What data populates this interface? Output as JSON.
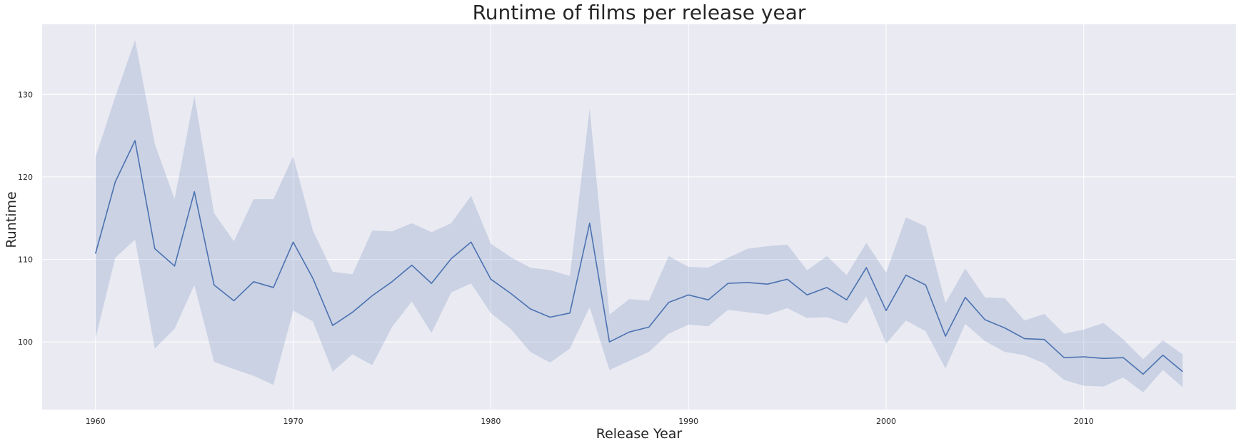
{
  "chart_data": {
    "type": "line",
    "title": "Runtime of films per release year",
    "xlabel": "Release Year",
    "ylabel": "Runtime",
    "xlim": [
      1957.3,
      2017.7
    ],
    "ylim": [
      91.8,
      138.5
    ],
    "xticks": [
      1960,
      1970,
      1980,
      1990,
      2000,
      2010
    ],
    "yticks": [
      100,
      110,
      120,
      130
    ],
    "grid": true,
    "legend": "none",
    "colors": {
      "line": "#4c72b0",
      "band": "#4c72b0",
      "background": "#eaeaf2",
      "grid": "#ffffff"
    },
    "series": [
      {
        "x": [
          1960,
          1961,
          1962,
          1963,
          1964,
          1965,
          1966,
          1967,
          1968,
          1969,
          1970,
          1971,
          1972,
          1973,
          1974,
          1975,
          1976,
          1977,
          1978,
          1979,
          1980,
          1981,
          1982,
          1983,
          1984,
          1985,
          1986,
          1987,
          1988,
          1989,
          1990,
          1991,
          1992,
          1993,
          1994,
          1995,
          1996,
          1997,
          1998,
          1999,
          2000,
          2001,
          2002,
          2003,
          2004,
          2005,
          2006,
          2007,
          2008,
          2009,
          2010,
          2011,
          2012,
          2013,
          2014,
          2015
        ],
        "values": [
          110.7,
          119.4,
          124.4,
          111.3,
          109.2,
          118.2,
          106.9,
          105.0,
          107.3,
          106.6,
          112.1,
          107.7,
          102.0,
          103.6,
          105.6,
          107.3,
          109.3,
          107.1,
          110.1,
          112.1,
          107.6,
          105.9,
          104.0,
          103.0,
          103.5,
          114.4,
          100.0,
          101.2,
          101.8,
          104.8,
          105.7,
          105.1,
          107.1,
          107.2,
          107.0,
          107.6,
          105.7,
          106.6,
          105.1,
          109.0,
          103.8,
          108.1,
          106.9,
          100.7,
          105.4,
          102.7,
          101.7,
          100.4,
          100.3,
          98.1,
          98.2,
          98.0,
          98.1,
          96.1,
          98.4,
          96.4
        ],
        "ci_low": [
          100.4,
          110.2,
          112.4,
          99.2,
          101.6,
          106.9,
          97.6,
          96.7,
          95.9,
          94.8,
          103.8,
          102.5,
          96.4,
          98.5,
          97.2,
          101.8,
          104.9,
          101.1,
          106.0,
          107.1,
          103.5,
          101.6,
          98.8,
          97.5,
          99.2,
          104.2,
          96.6,
          97.7,
          98.8,
          101.0,
          102.1,
          101.9,
          103.9,
          103.6,
          103.3,
          104.1,
          102.9,
          103.0,
          102.2,
          105.5,
          99.8,
          102.6,
          101.3,
          96.8,
          102.2,
          100.1,
          98.8,
          98.4,
          97.4,
          95.4,
          94.7,
          94.6,
          95.7,
          93.9,
          96.6,
          94.5
        ],
        "ci_high": [
          122.4,
          129.7,
          136.6,
          124.0,
          117.3,
          129.8,
          115.6,
          112.2,
          117.3,
          117.3,
          122.5,
          113.5,
          108.5,
          108.2,
          113.5,
          113.4,
          114.4,
          113.3,
          114.4,
          117.7,
          111.9,
          110.3,
          109.0,
          108.7,
          108.0,
          128.3,
          103.3,
          105.2,
          105.0,
          110.4,
          109.1,
          109.0,
          110.2,
          111.3,
          111.6,
          111.8,
          108.7,
          110.4,
          108.1,
          112.0,
          108.4,
          115.1,
          114.0,
          104.7,
          108.9,
          105.4,
          105.3,
          102.6,
          103.4,
          101.0,
          101.5,
          102.3,
          100.3,
          97.9,
          100.2,
          98.5
        ]
      }
    ]
  }
}
